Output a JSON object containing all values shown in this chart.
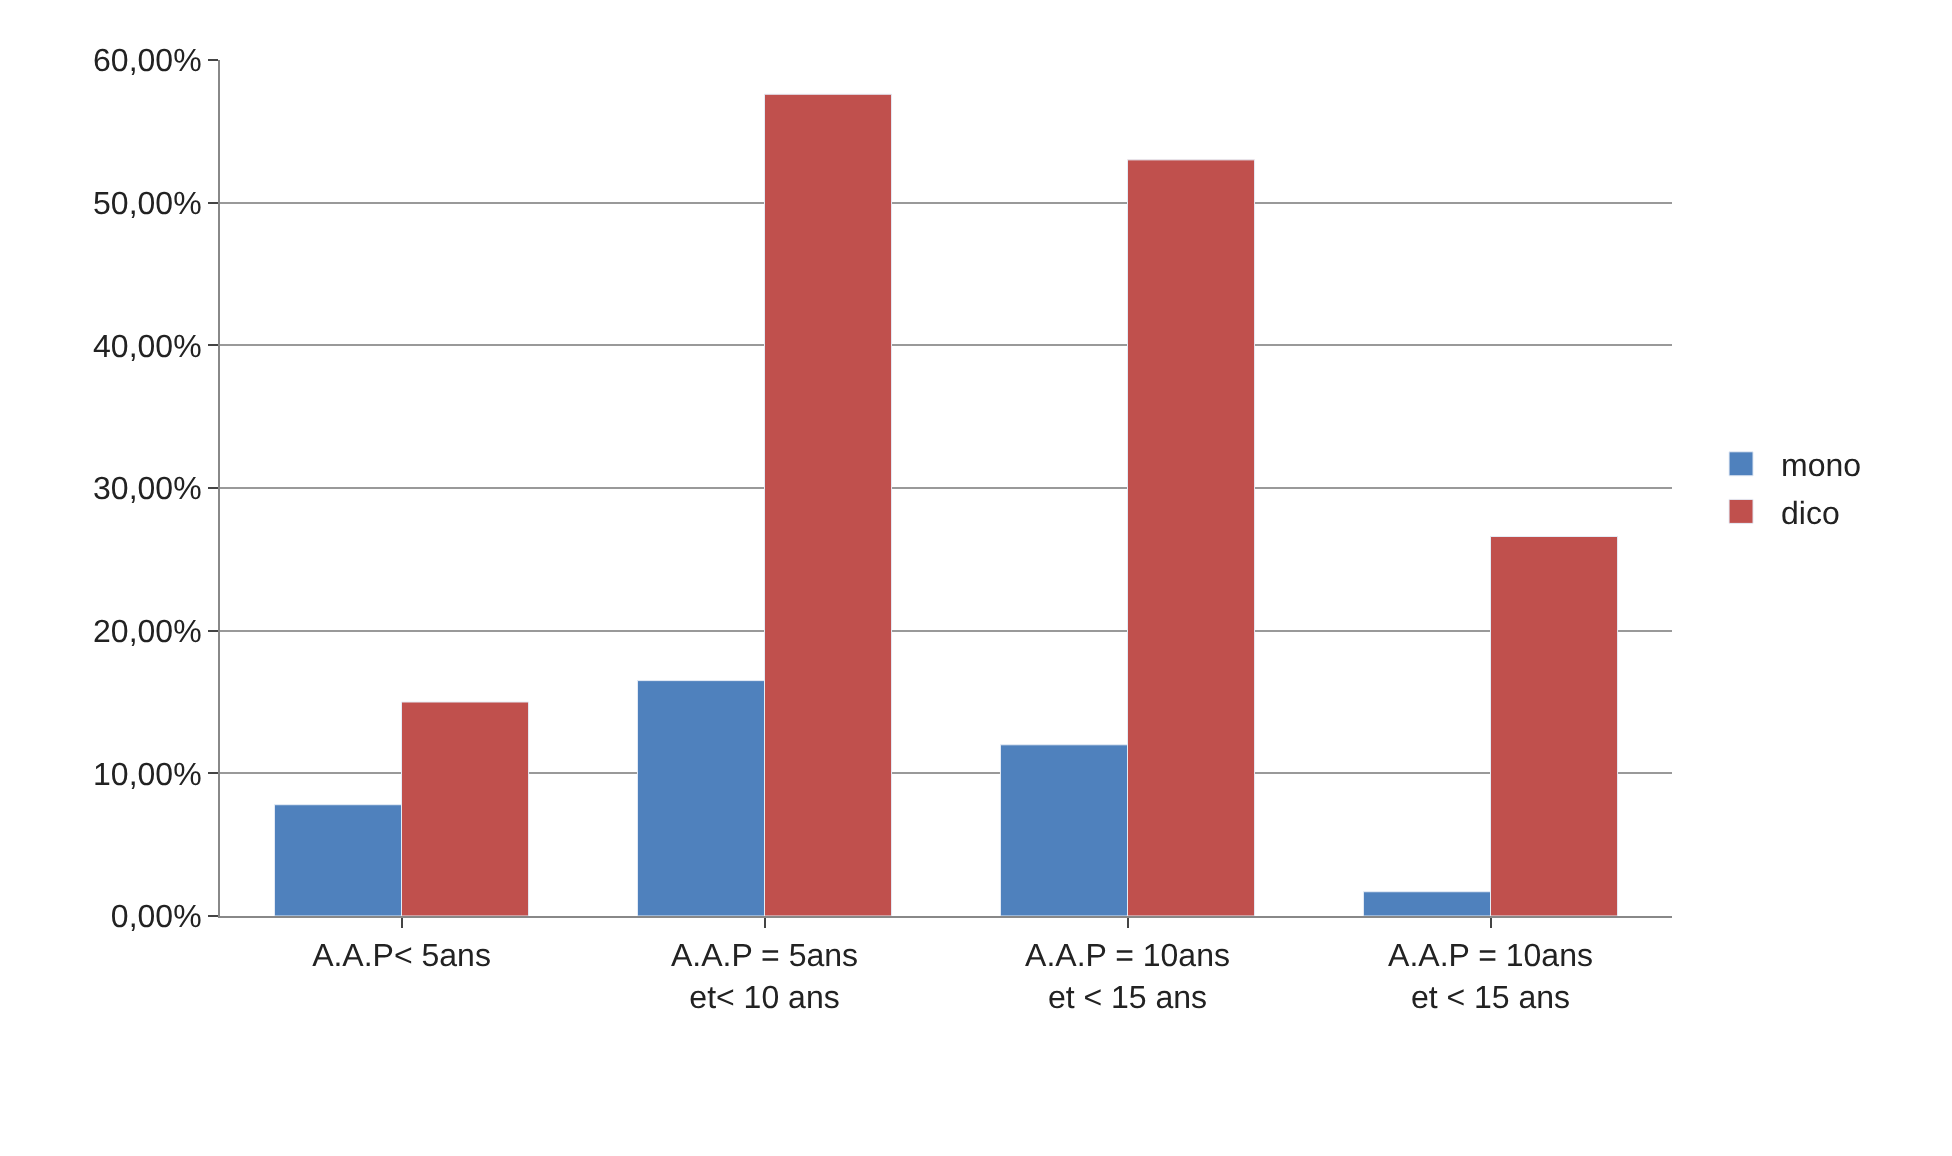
{
  "chart_data": {
    "type": "bar",
    "categories": [
      "A.A.P< 5ans",
      "A.A.P = 5ans et< 10 ans",
      "A.A.P = 10ans et < 15 ans",
      "A.A.P = 10ans et < 15 ans"
    ],
    "series": [
      {
        "name": "mono",
        "color": "#4f81bd",
        "values": [
          7.8,
          16.5,
          12.0,
          1.7
        ]
      },
      {
        "name": "dico",
        "color": "#c0504d",
        "values": [
          15.0,
          57.6,
          53.0,
          26.6
        ]
      }
    ],
    "ylim": [
      0,
      60
    ],
    "yticks": [
      {
        "value": 0,
        "label": "0,00%"
      },
      {
        "value": 10,
        "label": "10,00%"
      },
      {
        "value": 20,
        "label": "20,00%"
      },
      {
        "value": 30,
        "label": "30,00%"
      },
      {
        "value": 40,
        "label": "40,00%"
      },
      {
        "value": 50,
        "label": "50,00%"
      },
      {
        "value": 60,
        "label": "60,00%"
      }
    ],
    "grid": "y",
    "legend": "right"
  }
}
